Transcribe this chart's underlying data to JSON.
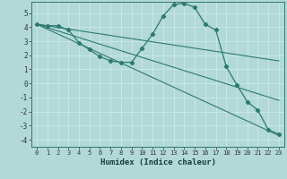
{
  "xlabel": "Humidex (Indice chaleur)",
  "bg_color": "#b2d8d8",
  "grid_color": "#c8e8e8",
  "line_color": "#2d7a6e",
  "xlim": [
    -0.5,
    23.5
  ],
  "ylim": [
    -4.5,
    5.8
  ],
  "yticks": [
    -4,
    -3,
    -2,
    -1,
    0,
    1,
    2,
    3,
    4,
    5
  ],
  "xticks": [
    0,
    1,
    2,
    3,
    4,
    5,
    6,
    7,
    8,
    9,
    10,
    11,
    12,
    13,
    14,
    15,
    16,
    17,
    18,
    19,
    20,
    21,
    22,
    23
  ],
  "curve1_x": [
    0,
    1,
    2,
    3,
    4,
    5,
    6,
    7,
    8,
    9,
    10,
    11,
    12,
    13,
    14,
    15,
    16,
    17,
    18,
    19,
    20,
    21,
    22,
    23
  ],
  "curve1_y": [
    4.2,
    4.1,
    4.1,
    3.8,
    2.9,
    2.4,
    1.9,
    1.6,
    1.5,
    1.5,
    2.5,
    3.5,
    4.8,
    5.6,
    5.7,
    5.4,
    4.2,
    3.8,
    1.2,
    -0.1,
    -1.3,
    -1.9,
    -3.3,
    -3.6
  ],
  "trend1_x": [
    0,
    23
  ],
  "trend1_y": [
    4.2,
    -3.7
  ],
  "trend2_x": [
    0,
    23
  ],
  "trend2_y": [
    4.2,
    -1.2
  ],
  "trend3_x": [
    0,
    23
  ],
  "trend3_y": [
    4.2,
    1.6
  ]
}
